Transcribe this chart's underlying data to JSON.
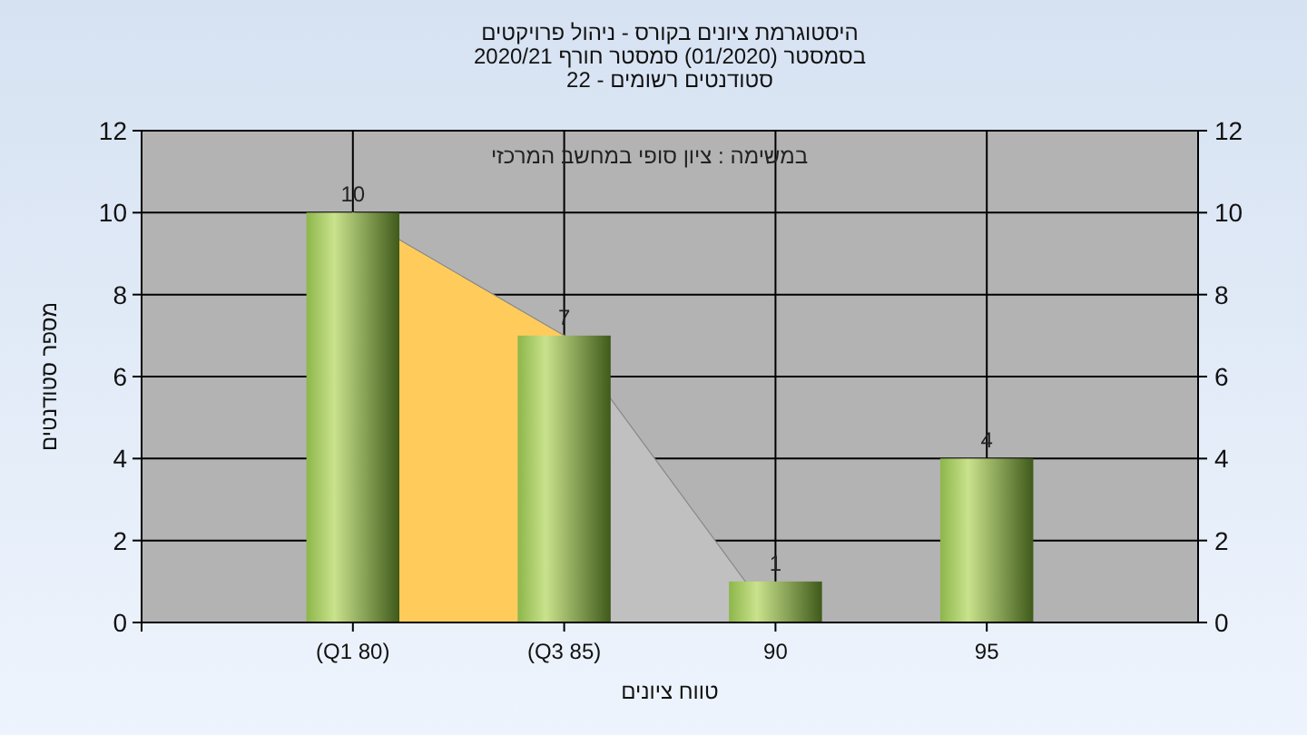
{
  "chart_data": {
    "type": "bar",
    "title": "היסטוגרמת ציונים בקורס - ניהול פרויקטים",
    "subtitle": "בסמסטר  (01/2020)  סמסטר חורף 2020/21",
    "xlabel": "טווח ציונים",
    "ylabel": "מספר סטודנטים",
    "annotations": [
      "סטודנטים רשומים - 22",
      "במשימה : ציון סופי במחשב המרכזי"
    ],
    "categories": [
      "(Q1 80)",
      "(Q3 85)",
      "90",
      "95"
    ],
    "series": [
      {
        "type": "area",
        "color": "#ffcc5c",
        "values": [
          10,
          7,
          null,
          null
        ]
      },
      {
        "type": "area",
        "color": "#c0c0c0",
        "values": [
          null,
          7,
          0,
          null
        ]
      },
      {
        "color": "#8db64a",
        "values": [
          10,
          7,
          1,
          4
        ],
        "value_labels": [
          "10",
          "7",
          "1",
          "4"
        ]
      }
    ],
    "ylim": [
      0,
      12
    ],
    "yticks": [
      0,
      2,
      4,
      6,
      8,
      10,
      12
    ],
    "y2lim": [
      0,
      12
    ],
    "y2ticks": [
      0,
      2,
      4,
      6,
      8,
      10,
      12
    ],
    "grid": true
  }
}
